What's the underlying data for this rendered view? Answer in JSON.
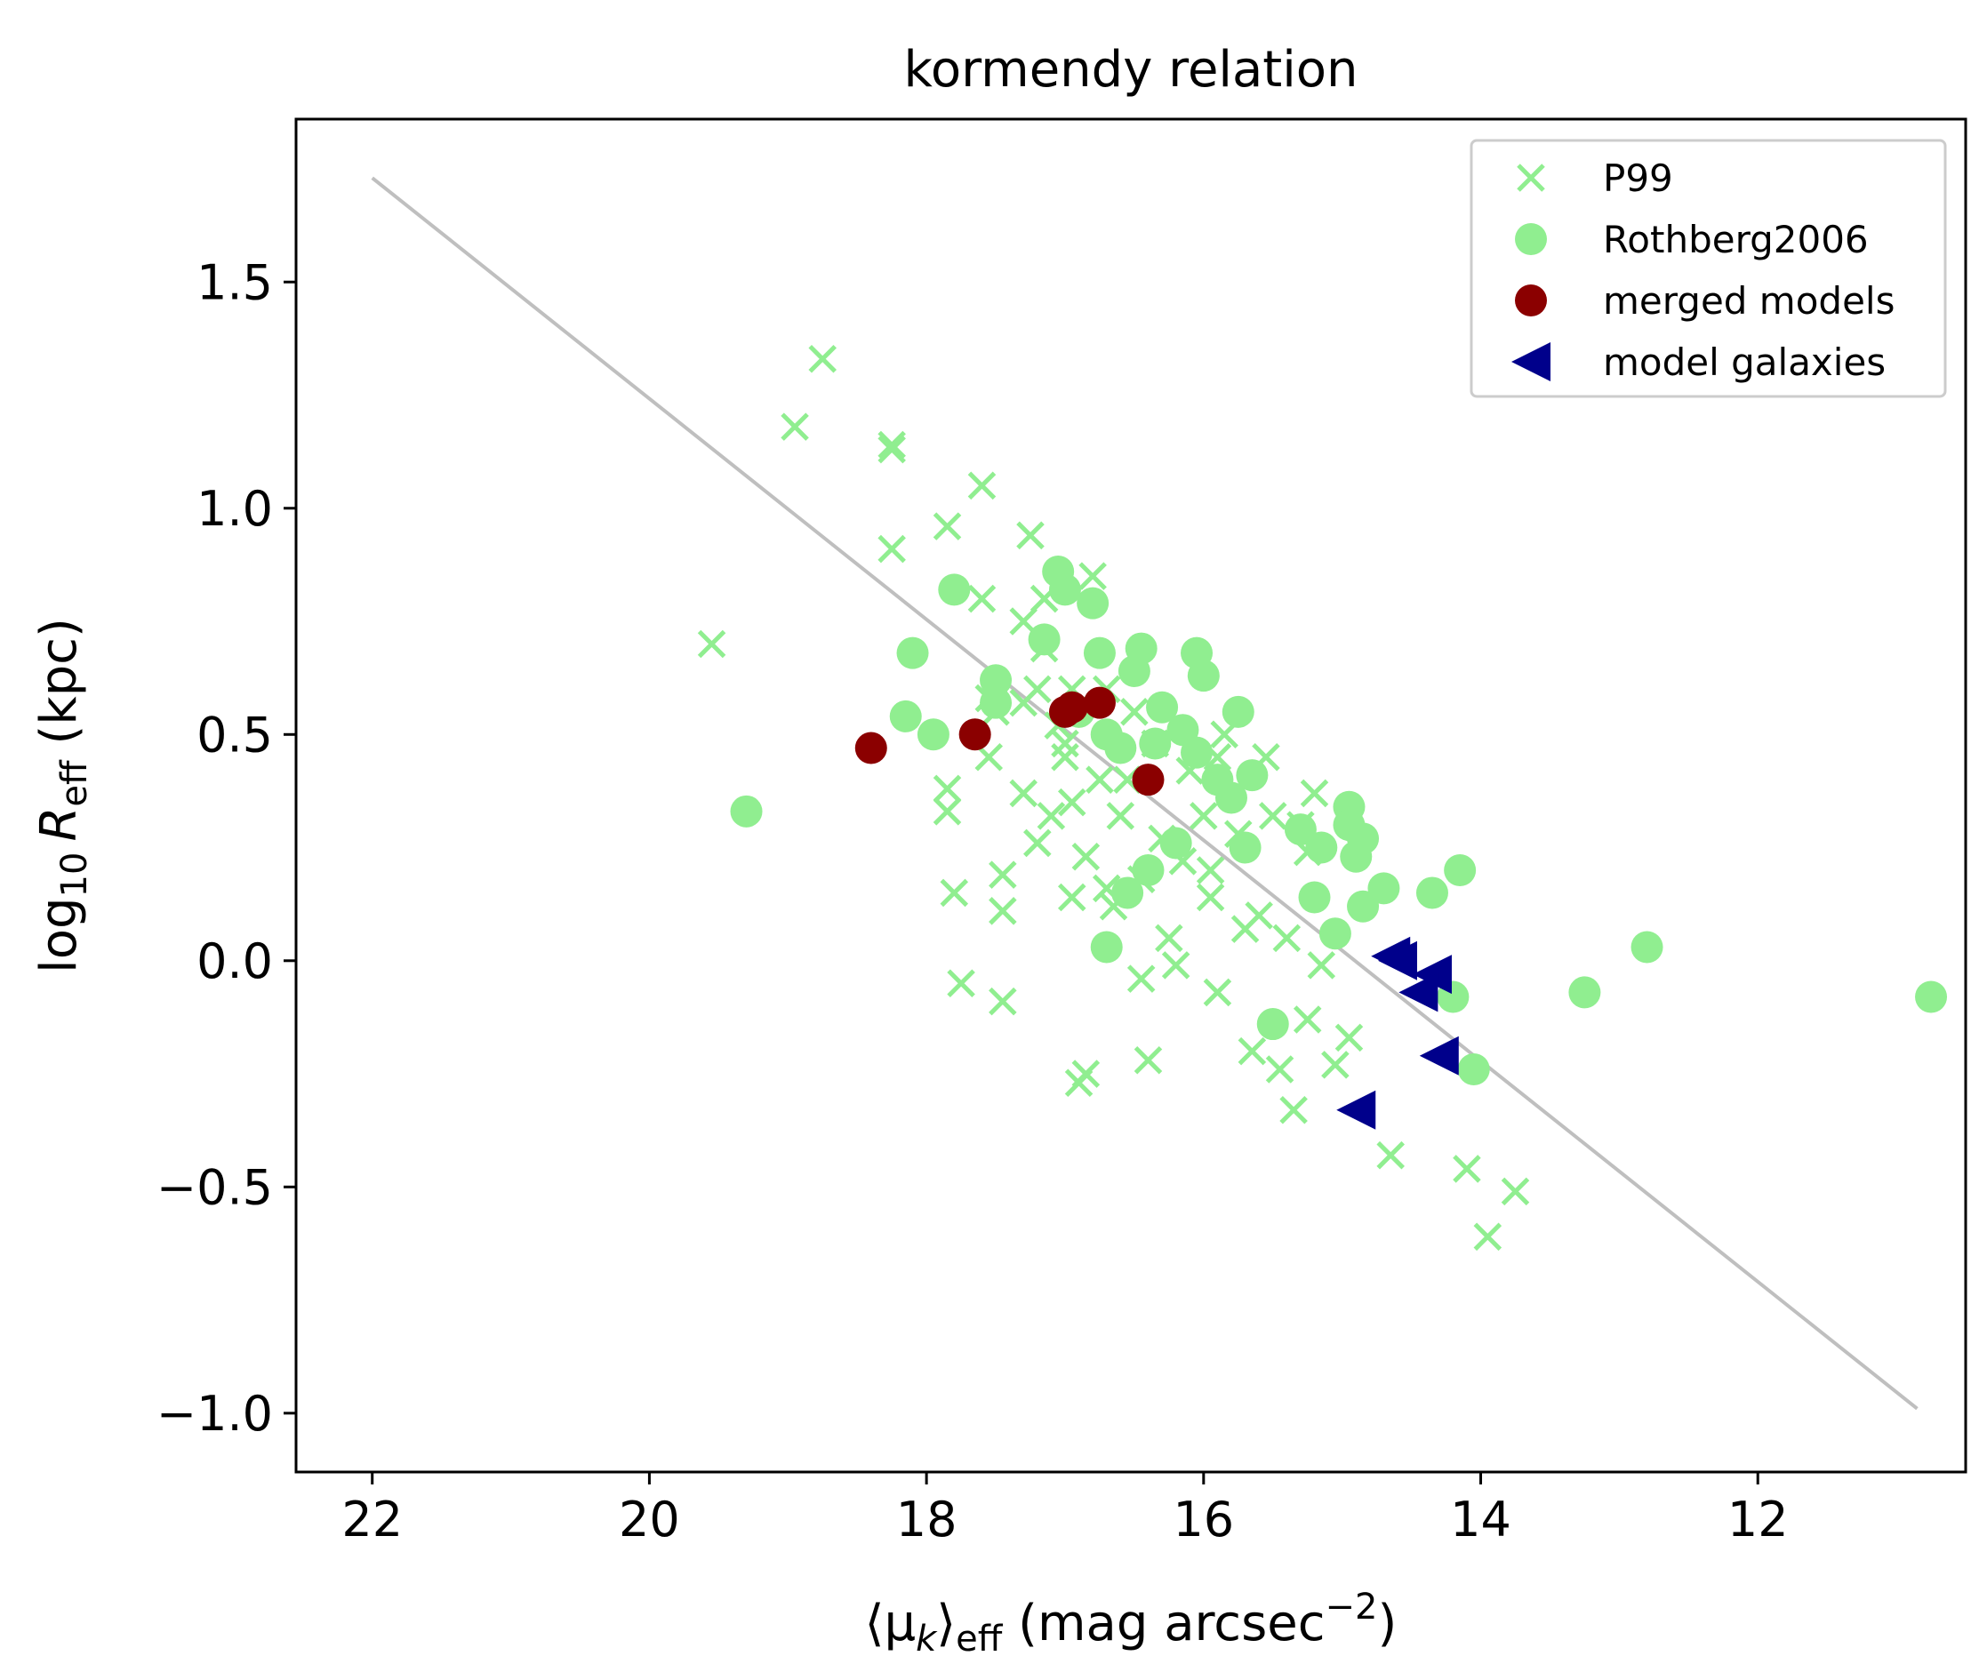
{
  "chart_data": {
    "type": "scatter",
    "title": "kormendy relation",
    "xlabel": {
      "open": "⟨μ",
      "sub": "k",
      "close": "⟩",
      "sub2": "eff",
      "rest": " (mag arcsec",
      "sup": "−2",
      "end": ")"
    },
    "ylabel": {
      "log": "log",
      "logsub": "10",
      "var": "R",
      "sub": "eff",
      "rest": " (kpc)"
    },
    "xlim": [
      22.55,
      10.5
    ],
    "ylim": [
      -1.13,
      1.86
    ],
    "x_inverted": true,
    "grid": false,
    "legend_position": "top-right",
    "xticks": [
      22,
      20,
      18,
      16,
      14,
      12
    ],
    "xtick_labels": [
      "22",
      "20",
      "18",
      "16",
      "14",
      "12"
    ],
    "yticks": [
      1.5,
      1.0,
      0.5,
      0.0,
      -0.5,
      -1.0
    ],
    "ytick_labels": [
      "1.5",
      "1.0",
      "0.5",
      "0.0",
      "−0.5",
      "−1.0"
    ],
    "fit_line": {
      "x": [
        22.0,
        10.85
      ],
      "y": [
        1.73,
        -0.99
      ],
      "color": "#bfbfbf"
    },
    "series": [
      {
        "name": "P99",
        "marker": "x",
        "color": "#90ee90",
        "points": [
          [
            19.55,
            0.7
          ],
          [
            18.95,
            1.18
          ],
          [
            18.75,
            1.33
          ],
          [
            18.25,
            1.13
          ],
          [
            18.25,
            1.14
          ],
          [
            18.25,
            0.91
          ],
          [
            17.85,
            0.96
          ],
          [
            17.85,
            0.38
          ],
          [
            17.85,
            0.33
          ],
          [
            17.8,
            0.15
          ],
          [
            17.75,
            -0.05
          ],
          [
            17.6,
            1.05
          ],
          [
            17.6,
            0.8
          ],
          [
            17.55,
            0.58
          ],
          [
            17.5,
            0.55
          ],
          [
            17.45,
            0.19
          ],
          [
            17.45,
            0.11
          ],
          [
            17.45,
            -0.09
          ],
          [
            17.3,
            0.75
          ],
          [
            17.3,
            0.57
          ],
          [
            17.3,
            0.37
          ],
          [
            17.25,
            0.94
          ],
          [
            17.2,
            0.6
          ],
          [
            17.2,
            0.26
          ],
          [
            17.15,
            0.8
          ],
          [
            17.1,
            0.32
          ],
          [
            17.05,
            0.52
          ],
          [
            17.0,
            0.45
          ],
          [
            16.95,
            0.6
          ],
          [
            16.95,
            0.35
          ],
          [
            16.95,
            0.14
          ],
          [
            16.9,
            -0.27
          ],
          [
            16.85,
            -0.25
          ],
          [
            16.75,
            0.4
          ],
          [
            16.7,
            0.6
          ],
          [
            16.6,
            0.32
          ],
          [
            16.5,
            0.55
          ],
          [
            16.45,
            0.18
          ],
          [
            16.4,
            -0.22
          ],
          [
            16.35,
            0.48
          ],
          [
            16.3,
            0.27
          ],
          [
            16.25,
            0.05
          ],
          [
            16.2,
            -0.01
          ],
          [
            16.1,
            0.42
          ],
          [
            16.0,
            0.32
          ],
          [
            15.95,
            0.14
          ],
          [
            15.9,
            -0.07
          ],
          [
            15.85,
            0.5
          ],
          [
            15.75,
            0.28
          ],
          [
            15.7,
            0.07
          ],
          [
            15.65,
            -0.2
          ],
          [
            15.55,
            0.45
          ],
          [
            15.5,
            0.32
          ],
          [
            15.45,
            -0.24
          ],
          [
            15.4,
            0.05
          ],
          [
            15.35,
            -0.33
          ],
          [
            15.3,
            0.3
          ],
          [
            15.25,
            -0.13
          ],
          [
            15.2,
            0.37
          ],
          [
            15.15,
            -0.01
          ],
          [
            15.05,
            -0.23
          ],
          [
            14.95,
            -0.17
          ],
          [
            14.65,
            -0.43
          ],
          [
            14.1,
            -0.46
          ],
          [
            13.95,
            -0.61
          ],
          [
            13.75,
            -0.51
          ],
          [
            16.8,
            0.85
          ],
          [
            17.0,
            0.48
          ],
          [
            16.55,
            0.4
          ],
          [
            16.15,
            0.22
          ],
          [
            15.95,
            0.2
          ],
          [
            15.6,
            0.1
          ],
          [
            17.15,
            0.69
          ],
          [
            16.85,
            0.23
          ],
          [
            16.45,
            -0.04
          ],
          [
            15.9,
            0.45
          ],
          [
            16.65,
            0.12
          ],
          [
            17.55,
            0.45
          ],
          [
            15.25,
            0.24
          ],
          [
            16.7,
            0.16
          ]
        ]
      },
      {
        "name": "Rothberg2006",
        "marker": "o",
        "color": "#90ee90",
        "points": [
          [
            19.3,
            0.33
          ],
          [
            18.1,
            0.68
          ],
          [
            18.15,
            0.54
          ],
          [
            17.95,
            0.5
          ],
          [
            17.8,
            0.82
          ],
          [
            17.5,
            0.62
          ],
          [
            17.5,
            0.57
          ],
          [
            17.15,
            0.71
          ],
          [
            17.05,
            0.86
          ],
          [
            17.0,
            0.82
          ],
          [
            16.9,
            0.55
          ],
          [
            16.8,
            0.79
          ],
          [
            16.75,
            0.68
          ],
          [
            16.7,
            0.5
          ],
          [
            16.7,
            0.03
          ],
          [
            16.6,
            0.47
          ],
          [
            16.55,
            0.15
          ],
          [
            16.5,
            0.64
          ],
          [
            16.45,
            0.69
          ],
          [
            16.4,
            0.2
          ],
          [
            16.35,
            0.48
          ],
          [
            16.3,
            0.56
          ],
          [
            16.2,
            0.26
          ],
          [
            16.15,
            0.51
          ],
          [
            16.05,
            0.46
          ],
          [
            16.05,
            0.68
          ],
          [
            16.0,
            0.63
          ],
          [
            15.9,
            0.4
          ],
          [
            15.8,
            0.36
          ],
          [
            15.75,
            0.55
          ],
          [
            15.7,
            0.25
          ],
          [
            15.65,
            0.41
          ],
          [
            15.5,
            -0.14
          ],
          [
            15.3,
            0.29
          ],
          [
            15.2,
            0.14
          ],
          [
            15.15,
            0.25
          ],
          [
            15.05,
            0.06
          ],
          [
            14.95,
            0.34
          ],
          [
            14.95,
            0.3
          ],
          [
            14.85,
            0.27
          ],
          [
            14.9,
            0.23
          ],
          [
            14.85,
            0.12
          ],
          [
            14.7,
            0.16
          ],
          [
            14.35,
            0.15
          ],
          [
            14.15,
            0.2
          ],
          [
            14.2,
            -0.08
          ],
          [
            14.05,
            -0.24
          ],
          [
            13.25,
            -0.07
          ],
          [
            12.8,
            0.03
          ],
          [
            10.75,
            -0.08
          ]
        ]
      },
      {
        "name": "merged models",
        "marker": "o",
        "color": "#8b0000",
        "points": [
          [
            18.4,
            0.47
          ],
          [
            17.65,
            0.5
          ],
          [
            17.0,
            0.55
          ],
          [
            16.95,
            0.56
          ],
          [
            16.75,
            0.57
          ],
          [
            16.4,
            0.4
          ]
        ]
      },
      {
        "name": "model galaxies",
        "marker": "<",
        "color": "#00008b",
        "points": [
          [
            14.65,
            0.01
          ],
          [
            14.6,
            0.0
          ],
          [
            14.35,
            -0.03
          ],
          [
            14.45,
            -0.07
          ],
          [
            14.3,
            -0.21
          ],
          [
            14.9,
            -0.33
          ]
        ]
      }
    ],
    "legend": [
      "P99",
      "Rothberg2006",
      "merged models",
      "model galaxies"
    ]
  }
}
